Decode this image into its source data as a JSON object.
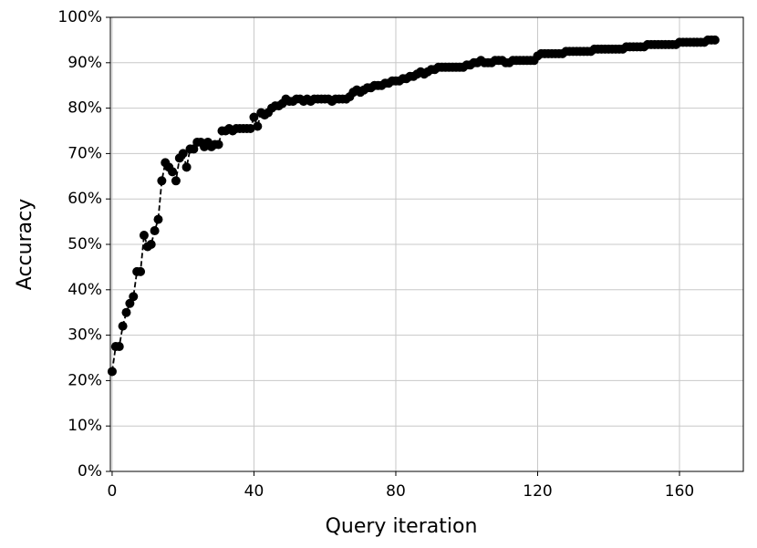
{
  "chart_data": {
    "type": "line",
    "x_label": "Query iteration",
    "y_label": "Accuracy",
    "x": [
      0,
      1,
      2,
      3,
      4,
      5,
      6,
      7,
      8,
      9,
      10,
      11,
      12,
      13,
      14,
      15,
      16,
      17,
      18,
      19,
      20,
      21,
      22,
      23,
      24,
      25,
      26,
      27,
      28,
      29,
      30,
      31,
      32,
      33,
      34,
      35,
      36,
      37,
      38,
      39,
      40,
      41,
      42,
      43,
      44,
      45,
      46,
      47,
      48,
      49,
      50,
      51,
      52,
      53,
      54,
      55,
      56,
      57,
      58,
      59,
      60,
      61,
      62,
      63,
      64,
      65,
      66,
      67,
      68,
      69,
      70,
      71,
      72,
      73,
      74,
      75,
      76,
      77,
      78,
      79,
      80,
      81,
      82,
      83,
      84,
      85,
      86,
      87,
      88,
      89,
      90,
      91,
      92,
      93,
      94,
      95,
      96,
      97,
      98,
      99,
      100,
      101,
      102,
      103,
      104,
      105,
      106,
      107,
      108,
      109,
      110,
      111,
      112,
      113,
      114,
      115,
      116,
      117,
      118,
      119,
      120,
      121,
      122,
      123,
      124,
      125,
      126,
      127,
      128,
      129,
      130,
      131,
      132,
      133,
      134,
      135,
      136,
      137,
      138,
      139,
      140,
      141,
      142,
      143,
      144,
      145,
      146,
      147,
      148,
      149,
      150,
      151,
      152,
      153,
      154,
      155,
      156,
      157,
      158,
      159,
      160,
      161,
      162,
      163,
      164,
      165,
      166,
      167,
      168,
      169,
      170
    ],
    "series": [
      {
        "color": "#000000",
        "values": [
          22,
          27.5,
          27.5,
          32,
          35,
          37,
          38.5,
          44,
          44,
          52,
          49.5,
          50,
          53,
          55.5,
          64,
          68,
          67,
          66,
          64,
          69,
          70,
          67,
          71,
          71,
          72.5,
          72.5,
          71.5,
          72.5,
          71.5,
          72,
          72,
          75,
          75,
          75.5,
          75,
          75.5,
          75.5,
          75.5,
          75.5,
          75.5,
          78,
          76,
          79,
          78.5,
          79,
          80,
          80.5,
          80.5,
          81,
          82,
          81.5,
          81.5,
          82,
          82,
          81.5,
          82,
          81.5,
          82,
          82,
          82,
          82,
          82,
          81.5,
          82,
          82,
          82,
          82,
          82.5,
          83.5,
          84,
          83.5,
          84,
          84.5,
          84.5,
          85,
          85,
          85,
          85.5,
          85.5,
          86,
          86,
          86,
          86.5,
          86.5,
          87,
          87,
          87.5,
          88,
          87.5,
          88,
          88.5,
          88.5,
          89,
          89,
          89,
          89,
          89,
          89,
          89,
          89,
          89.5,
          89.5,
          90,
          90,
          90.5,
          90,
          90,
          90,
          90.5,
          90.5,
          90.5,
          90,
          90,
          90.5,
          90.5,
          90.5,
          90.5,
          90.5,
          90.5,
          90.5,
          91.5,
          92,
          92,
          92,
          92,
          92,
          92,
          92,
          92.5,
          92.5,
          92.5,
          92.5,
          92.5,
          92.5,
          92.5,
          92.5,
          93,
          93,
          93,
          93,
          93,
          93,
          93,
          93,
          93,
          93.5,
          93.5,
          93.5,
          93.5,
          93.5,
          93.5,
          94,
          94,
          94,
          94,
          94,
          94,
          94,
          94,
          94,
          94.5,
          94.5,
          94.5,
          94.5,
          94.5,
          94.5,
          94.5,
          94.5,
          95,
          95,
          95
        ]
      }
    ],
    "xlim": [
      -0.5,
      178
    ],
    "xticks": [
      0,
      40,
      80,
      120,
      160
    ],
    "ylim": [
      0,
      100
    ],
    "yticks": [
      {
        "value": 0,
        "label": "0%"
      },
      {
        "value": 10,
        "label": "10%"
      },
      {
        "value": 20,
        "label": "20%"
      },
      {
        "value": 30,
        "label": "30%"
      },
      {
        "value": 40,
        "label": "40%"
      },
      {
        "value": 50,
        "label": "50%"
      },
      {
        "value": 60,
        "label": "60%"
      },
      {
        "value": 70,
        "label": "70%"
      },
      {
        "value": 80,
        "label": "80%"
      },
      {
        "value": 90,
        "label": "90%"
      },
      {
        "value": 100,
        "label": "100%"
      }
    ],
    "grid": true,
    "line_style": "dashed",
    "marker": "circle"
  }
}
